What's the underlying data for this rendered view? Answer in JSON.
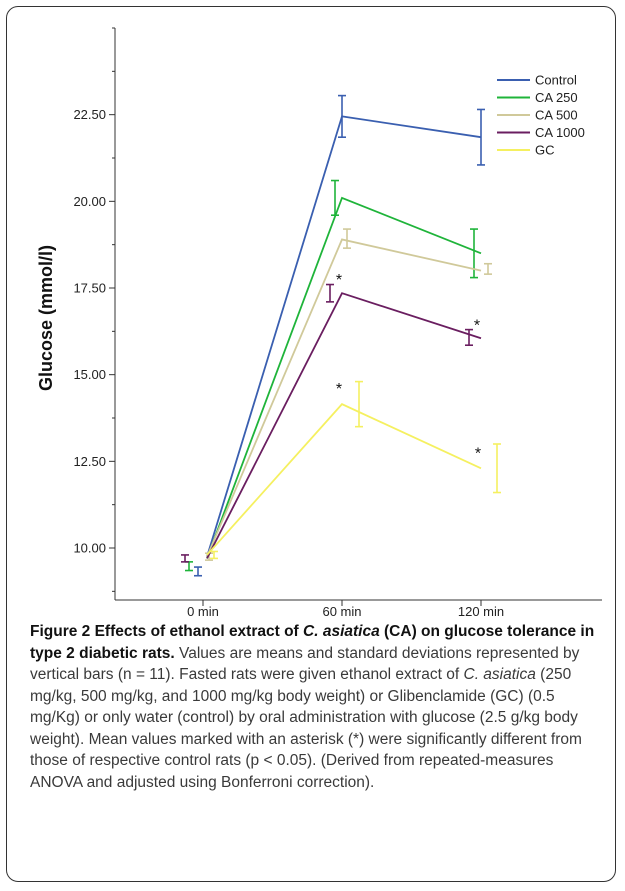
{
  "chart_data": {
    "type": "line",
    "ylabel": "Glucose (mmol/l)",
    "xlabel": "",
    "categories": [
      "0 min",
      "60 min",
      "120 min"
    ],
    "ylim": [
      8.5,
      25.0
    ],
    "yticks": [
      "10.00",
      "12.50",
      "15.00",
      "17.50",
      "20.00",
      "22.50"
    ],
    "legend_position": "top-right",
    "grid": false,
    "series": [
      {
        "name": "Control",
        "color": "#3a5fb0",
        "values": [
          9.3,
          22.45,
          21.85
        ],
        "errors": [
          {
            "x": 0,
            "low": 9.2,
            "high": 9.45
          },
          {
            "x": 1,
            "low": 21.85,
            "high": 23.05
          },
          {
            "x": 2,
            "low": 21.05,
            "high": 22.65
          }
        ]
      },
      {
        "name": "CA 250",
        "color": "#1fb43a",
        "values": [
          9.45,
          20.1,
          18.5
        ],
        "errors": [
          {
            "x": 0,
            "low": 9.35,
            "high": 9.6
          },
          {
            "x": 1,
            "low": 19.6,
            "high": 20.6
          },
          {
            "x": 2,
            "low": 17.8,
            "high": 19.2
          }
        ]
      },
      {
        "name": "CA 500",
        "color": "#d0c99a",
        "values": [
          9.75,
          18.9,
          18.0
        ],
        "errors": [
          {
            "x": 0,
            "low": 9.65,
            "high": 9.85
          },
          {
            "x": 1,
            "low": 18.65,
            "high": 19.2
          },
          {
            "x": 2,
            "low": 17.9,
            "high": 18.2
          }
        ]
      },
      {
        "name": "CA 1000",
        "color": "#6a1e60",
        "values": [
          9.7,
          17.35,
          16.05
        ],
        "errors": [
          {
            "x": 0,
            "low": 9.6,
            "high": 9.8
          },
          {
            "x": 1,
            "low": 17.1,
            "high": 17.6
          },
          {
            "x": 2,
            "low": 15.85,
            "high": 16.3
          }
        ]
      },
      {
        "name": "GC",
        "color": "#f5f060",
        "values": [
          9.8,
          14.15,
          12.3
        ],
        "errors": [
          {
            "x": 0,
            "low": 9.7,
            "high": 9.9
          },
          {
            "x": 1,
            "low": 13.5,
            "high": 14.8
          },
          {
            "x": 2,
            "low": 11.6,
            "high": 13.0
          }
        ]
      }
    ],
    "annotations": [
      {
        "text": "*",
        "series": "CA 1000",
        "x": 1
      },
      {
        "text": "*",
        "series": "CA 1000",
        "x": 2
      },
      {
        "text": "*",
        "series": "GC",
        "x": 1
      },
      {
        "text": "*",
        "series": "GC",
        "x": 2
      }
    ]
  },
  "caption": {
    "title_part1": "Figure 2 Effects of ethanol extract of ",
    "title_italic": "C. asiatica",
    "title_part2": " (CA) on glucose tolerance in type 2 diabetic rats.",
    "body_part1": " Values are means and standard deviations represented by vertical bars (n = 11). Fasted rats were given ethanol extract of ",
    "body_italic": "C. asiatica",
    "body_part2": " (250 mg/kg, 500 mg/kg, and 1000 mg/kg body weight) or Glibenclamide (GC) (0.5 mg/Kg) or only water (control) by oral administration with glucose (2.5 g/kg body weight). Mean values marked with an asterisk (*) were significantly different from those of respective control rats (p < 0.05). (Derived from repeated-measures ANOVA and adjusted using Bonferroni correction)."
  }
}
